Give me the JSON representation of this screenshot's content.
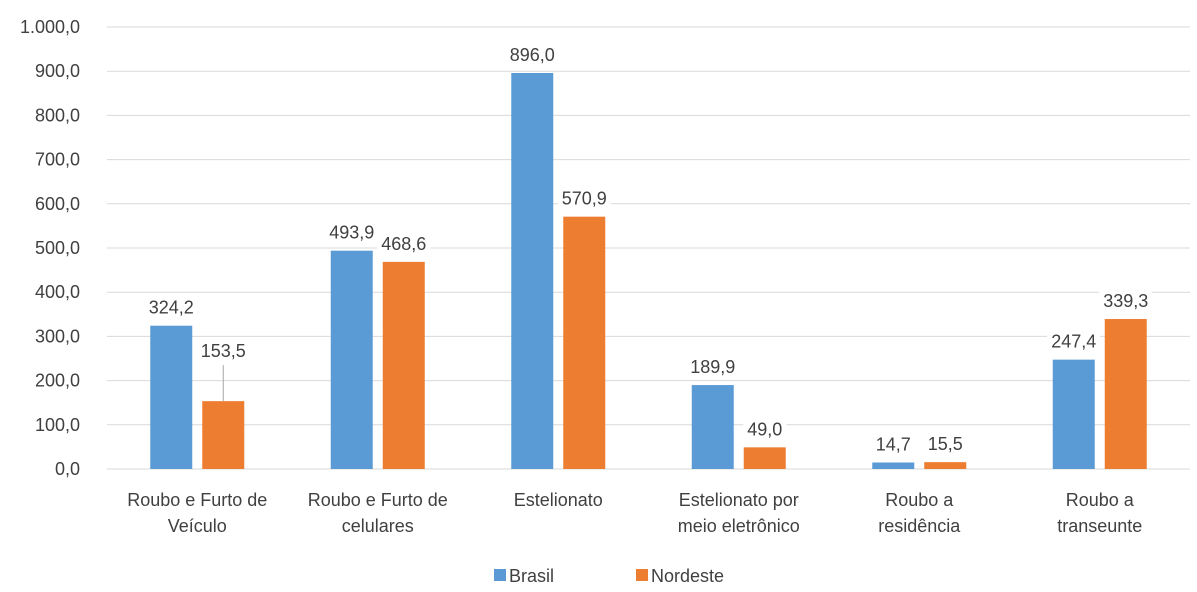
{
  "chart_data": {
    "type": "bar",
    "categories": [
      [
        "Roubo e Furto de",
        "Veículo"
      ],
      [
        "Roubo e Furto de",
        "celulares"
      ],
      [
        "Estelionato"
      ],
      [
        "Estelionato por",
        "meio eletrônico"
      ],
      [
        "Roubo a",
        "residência"
      ],
      [
        "Roubo a",
        "transeunte"
      ]
    ],
    "series": [
      {
        "name": "Brasil",
        "color": "#5b9bd5",
        "values": [
          324.2,
          493.9,
          896.0,
          189.9,
          14.7,
          247.4
        ],
        "labels": [
          "324,2",
          "493,9",
          "896,0",
          "189,9",
          "14,7",
          "247,4"
        ]
      },
      {
        "name": "Nordeste",
        "color": "#ed7d31",
        "values": [
          153.5,
          468.6,
          570.9,
          49.0,
          15.5,
          339.3
        ],
        "labels": [
          "153,5",
          "468,6",
          "570,9",
          "49,0",
          "15,5",
          "339,3"
        ]
      }
    ],
    "ylim": [
      0,
      1000
    ],
    "yticks": [
      0,
      100,
      200,
      300,
      400,
      500,
      600,
      700,
      800,
      900,
      1000
    ],
    "ytick_labels": [
      "0,0",
      "100,0",
      "200,0",
      "300,0",
      "400,0",
      "500,0",
      "600,0",
      "700,0",
      "800,0",
      "900,0",
      "1.000,0"
    ],
    "grid": true,
    "legend": "bottom-center",
    "title": "",
    "xlabel": "",
    "ylabel": ""
  }
}
